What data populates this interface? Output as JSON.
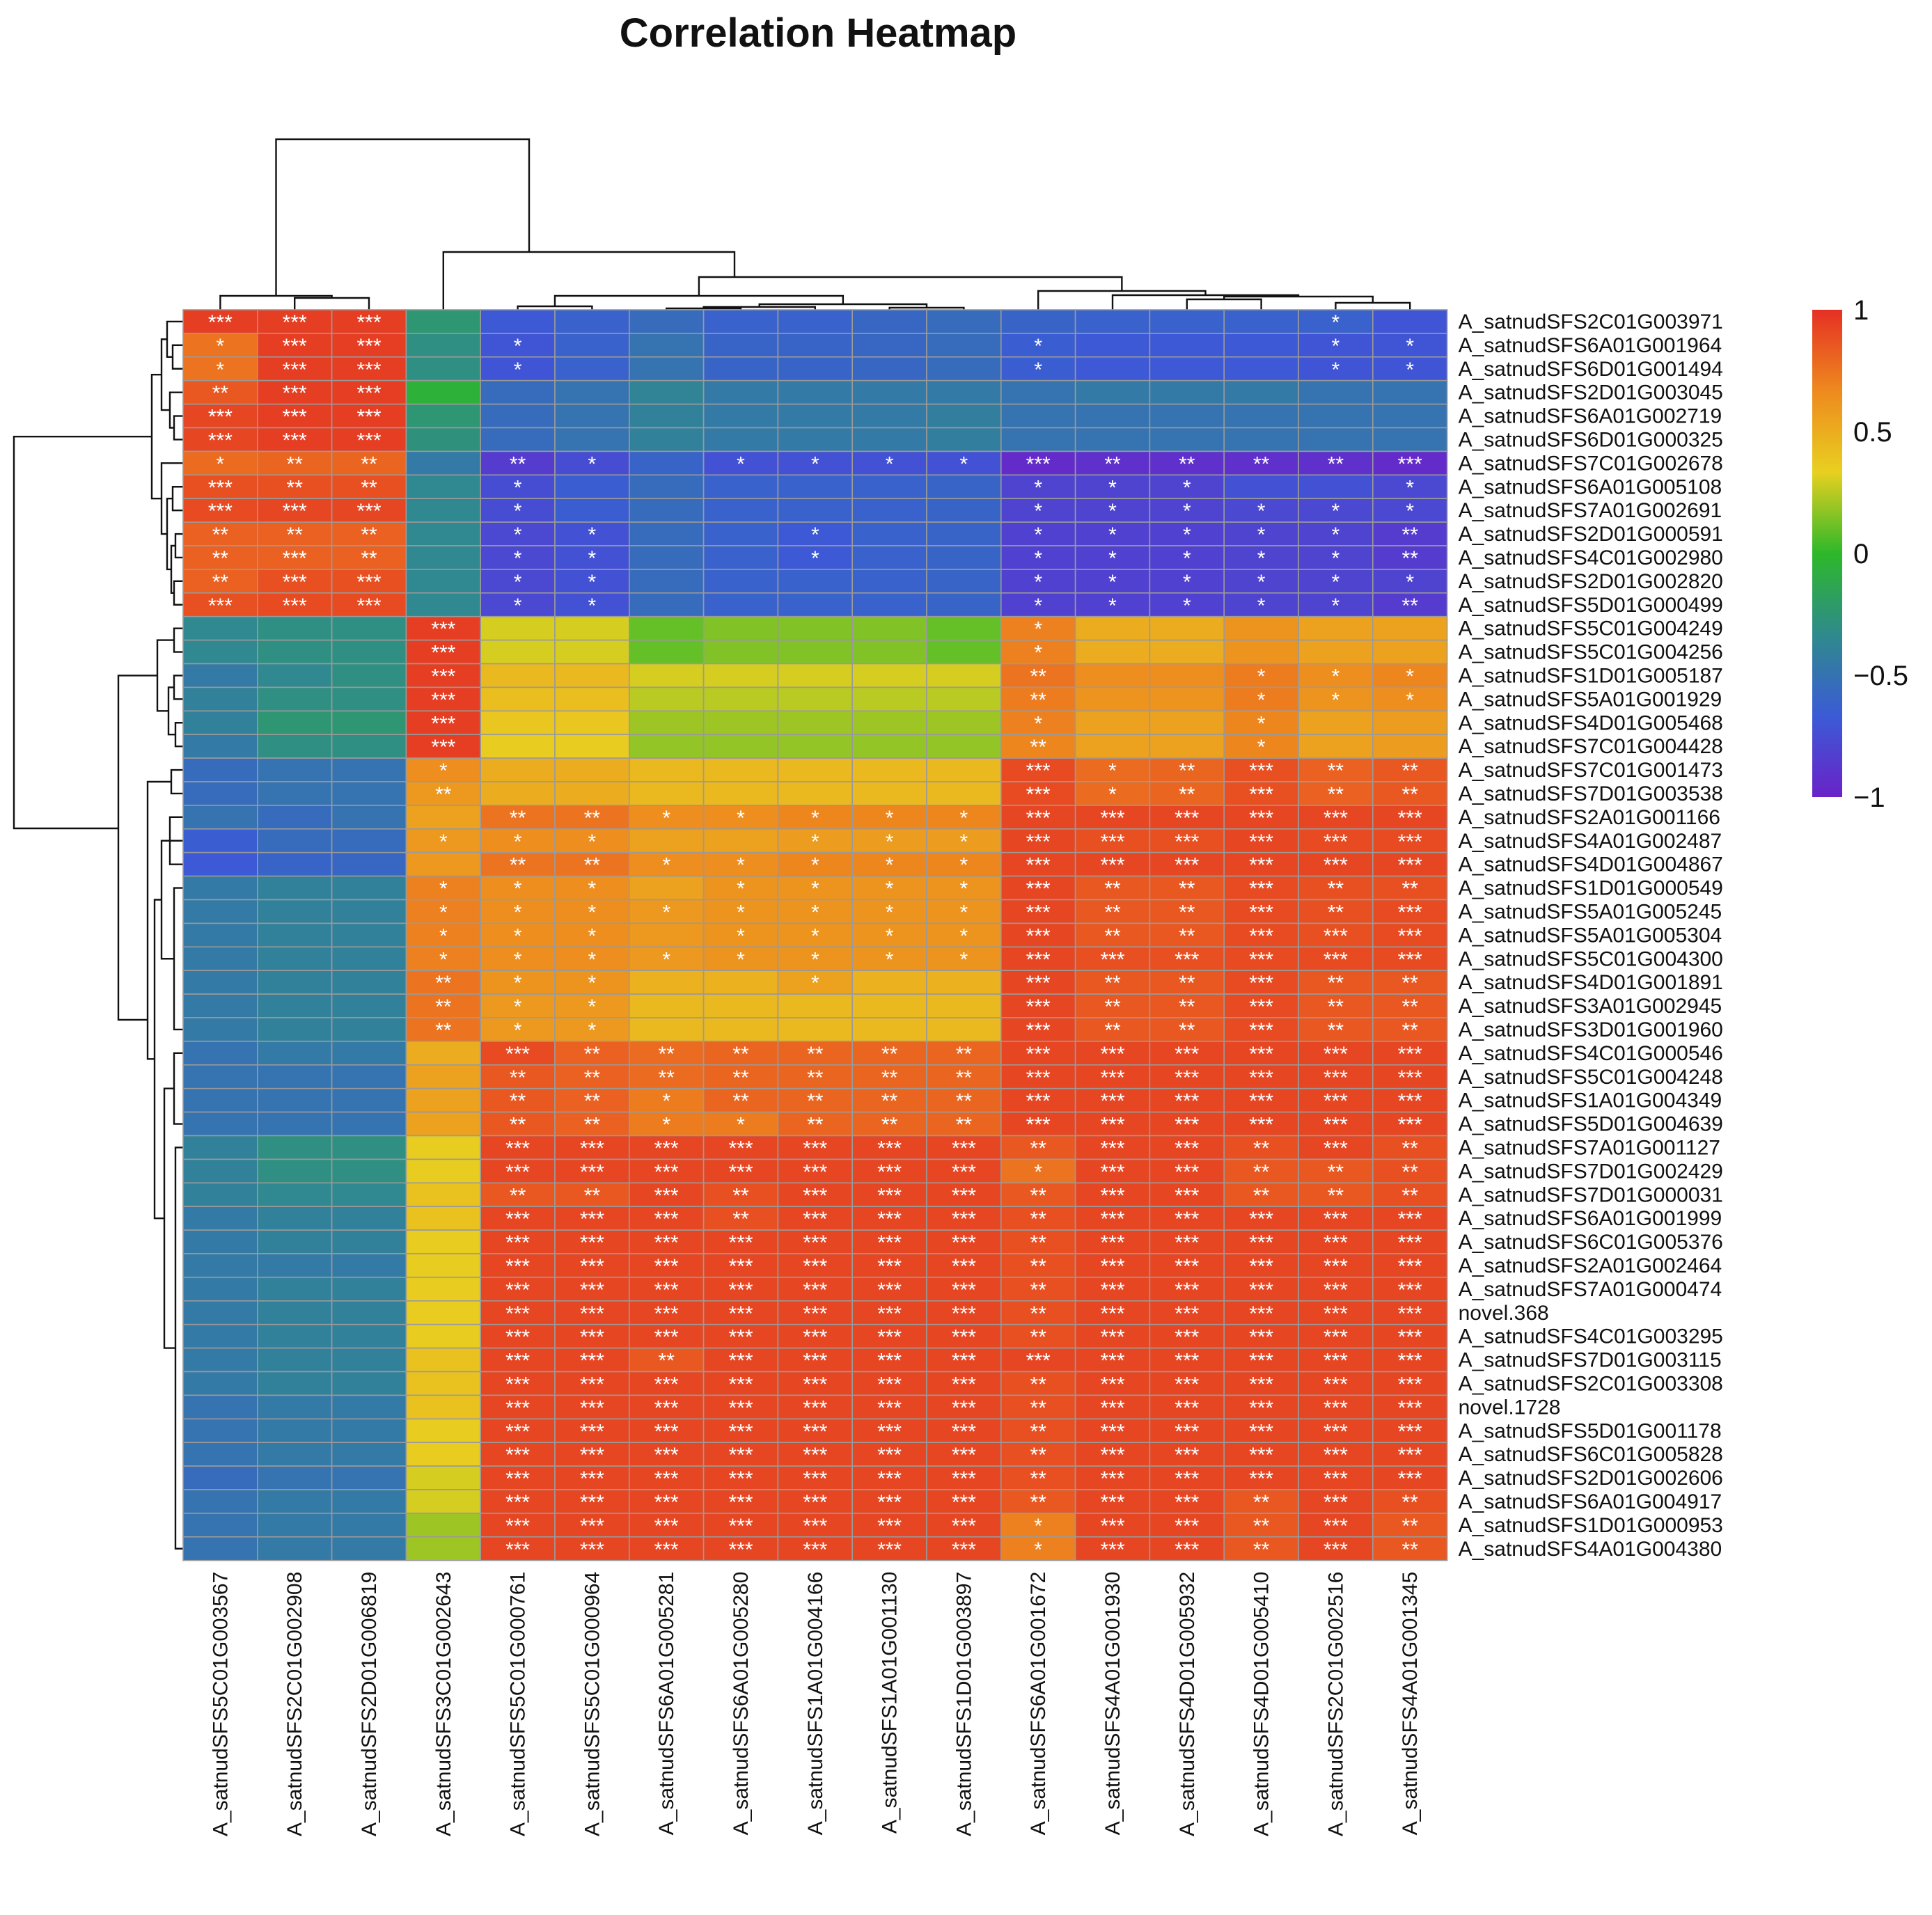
{
  "chart_data": {
    "type": "heatmap",
    "title": "Correlation Heatmap",
    "columns": [
      "A_satnudSFS5C01G003567",
      "A_satnudSFS2C01G002908",
      "A_satnudSFS2D01G006819",
      "A_satnudSFS3C01G002643",
      "A_satnudSFS5C01G000761",
      "A_satnudSFS5C01G000964",
      "A_satnudSFS6A01G005281",
      "A_satnudSFS6A01G005280",
      "A_satnudSFS1A01G004166",
      "A_satnudSFS1A01G001130",
      "A_satnudSFS1D01G003897",
      "A_satnudSFS6A01G001672",
      "A_satnudSFS4A01G001930",
      "A_satnudSFS4D01G005932",
      "A_satnudSFS4D01G005410",
      "A_satnudSFS2C01G002516",
      "A_satnudSFS4A01G001345"
    ],
    "rows": [
      "A_satnudSFS2C01G003971",
      "A_satnudSFS6A01G001964",
      "A_satnudSFS6D01G001494",
      "A_satnudSFS2D01G003045",
      "A_satnudSFS6A01G002719",
      "A_satnudSFS6D01G000325",
      "A_satnudSFS7C01G002678",
      "A_satnudSFS6A01G005108",
      "A_satnudSFS7A01G002691",
      "A_satnudSFS2D01G000591",
      "A_satnudSFS4C01G002980",
      "A_satnudSFS2D01G002820",
      "A_satnudSFS5D01G000499",
      "A_satnudSFS5C01G004249",
      "A_satnudSFS5C01G004256",
      "A_satnudSFS1D01G005187",
      "A_satnudSFS5A01G001929",
      "A_satnudSFS4D01G005468",
      "A_satnudSFS7C01G004428",
      "A_satnudSFS7C01G001473",
      "A_satnudSFS7D01G003538",
      "A_satnudSFS2A01G001166",
      "A_satnudSFS4A01G002487",
      "A_satnudSFS4D01G004867",
      "A_satnudSFS1D01G000549",
      "A_satnudSFS5A01G005245",
      "A_satnudSFS5A01G005304",
      "A_satnudSFS5C01G004300",
      "A_satnudSFS4D01G001891",
      "A_satnudSFS3A01G002945",
      "A_satnudSFS3D01G001960",
      "A_satnudSFS4C01G000546",
      "A_satnudSFS5C01G004248",
      "A_satnudSFS1A01G004349",
      "A_satnudSFS5D01G004639",
      "A_satnudSFS7A01G001127",
      "A_satnudSFS7D01G002429",
      "A_satnudSFS7D01G000031",
      "A_satnudSFS6A01G001999",
      "A_satnudSFS6C01G005376",
      "A_satnudSFS2A01G002464",
      "A_satnudSFS7A01G000474",
      "novel.368",
      "A_satnudSFS4C01G003295",
      "A_satnudSFS7D01G003115",
      "A_satnudSFS2C01G003308",
      "novel.1728",
      "A_satnudSFS5D01G001178",
      "A_satnudSFS6C01G005828",
      "A_satnudSFS2D01G002606",
      "A_satnudSFS6A01G004917",
      "A_satnudSFS1D01G000953",
      "A_satnudSFS4A01G004380"
    ],
    "values": [
      [
        0.95,
        0.95,
        0.95,
        -0.25,
        -0.68,
        -0.62,
        -0.55,
        -0.62,
        -0.62,
        -0.58,
        -0.55,
        -0.6,
        -0.62,
        -0.62,
        -0.62,
        -0.62,
        -0.7
      ],
      [
        0.75,
        0.95,
        0.95,
        -0.3,
        -0.7,
        -0.62,
        -0.5,
        -0.6,
        -0.6,
        -0.58,
        -0.55,
        -0.65,
        -0.68,
        -0.68,
        -0.68,
        -0.7,
        -0.7
      ],
      [
        0.75,
        0.95,
        0.95,
        -0.3,
        -0.7,
        -0.62,
        -0.5,
        -0.6,
        -0.6,
        -0.58,
        -0.55,
        -0.65,
        -0.68,
        -0.68,
        -0.68,
        -0.7,
        -0.7
      ],
      [
        0.85,
        0.95,
        0.95,
        -0.05,
        -0.55,
        -0.5,
        -0.38,
        -0.45,
        -0.45,
        -0.45,
        -0.45,
        -0.5,
        -0.45,
        -0.45,
        -0.45,
        -0.5,
        -0.5
      ],
      [
        0.92,
        0.95,
        0.95,
        -0.25,
        -0.55,
        -0.5,
        -0.4,
        -0.45,
        -0.45,
        -0.45,
        -0.42,
        -0.5,
        -0.5,
        -0.5,
        -0.5,
        -0.5,
        -0.5
      ],
      [
        0.92,
        0.95,
        0.95,
        -0.28,
        -0.55,
        -0.5,
        -0.4,
        -0.45,
        -0.45,
        -0.45,
        -0.42,
        -0.5,
        -0.5,
        -0.5,
        -0.5,
        -0.5,
        -0.5
      ],
      [
        0.78,
        0.8,
        0.8,
        -0.45,
        -0.85,
        -0.75,
        -0.6,
        -0.72,
        -0.72,
        -0.72,
        -0.72,
        -0.95,
        -0.92,
        -0.92,
        -0.92,
        -0.92,
        -0.95
      ],
      [
        0.88,
        0.88,
        0.88,
        -0.35,
        -0.75,
        -0.65,
        -0.55,
        -0.62,
        -0.62,
        -0.62,
        -0.6,
        -0.8,
        -0.8,
        -0.8,
        -0.72,
        -0.72,
        -0.78
      ],
      [
        0.9,
        0.92,
        0.92,
        -0.35,
        -0.75,
        -0.65,
        -0.55,
        -0.62,
        -0.62,
        -0.62,
        -0.6,
        -0.8,
        -0.8,
        -0.8,
        -0.78,
        -0.78,
        -0.78
      ],
      [
        0.82,
        0.82,
        0.82,
        -0.35,
        -0.78,
        -0.72,
        -0.55,
        -0.62,
        -0.68,
        -0.62,
        -0.6,
        -0.82,
        -0.82,
        -0.82,
        -0.8,
        -0.8,
        -0.85
      ],
      [
        0.82,
        0.82,
        0.82,
        -0.35,
        -0.78,
        -0.72,
        -0.55,
        -0.62,
        -0.68,
        -0.62,
        -0.6,
        -0.82,
        -0.82,
        -0.82,
        -0.8,
        -0.8,
        -0.85
      ],
      [
        0.82,
        0.88,
        0.88,
        -0.35,
        -0.78,
        -0.72,
        -0.55,
        -0.62,
        -0.62,
        -0.62,
        -0.6,
        -0.82,
        -0.82,
        -0.82,
        -0.8,
        -0.8,
        -0.8
      ],
      [
        0.88,
        0.9,
        0.9,
        -0.35,
        -0.78,
        -0.72,
        -0.55,
        -0.62,
        -0.62,
        -0.62,
        -0.6,
        -0.82,
        -0.82,
        -0.82,
        -0.8,
        -0.8,
        -0.85
      ],
      [
        -0.35,
        -0.3,
        -0.3,
        0.95,
        0.3,
        0.3,
        0.1,
        0.15,
        0.15,
        0.15,
        0.1,
        0.7,
        0.5,
        0.5,
        0.62,
        0.55,
        0.55
      ],
      [
        -0.35,
        -0.3,
        -0.3,
        0.95,
        0.3,
        0.3,
        0.1,
        0.15,
        0.15,
        0.15,
        0.1,
        0.7,
        0.5,
        0.5,
        0.62,
        0.55,
        0.55
      ],
      [
        -0.45,
        -0.35,
        -0.3,
        0.95,
        0.45,
        0.45,
        0.3,
        0.3,
        0.3,
        0.3,
        0.3,
        0.75,
        0.65,
        0.65,
        0.72,
        0.65,
        0.68
      ],
      [
        -0.4,
        -0.3,
        -0.3,
        0.95,
        0.42,
        0.42,
        0.25,
        0.25,
        0.25,
        0.25,
        0.25,
        0.72,
        0.62,
        0.62,
        0.72,
        0.62,
        0.65
      ],
      [
        -0.4,
        -0.25,
        -0.25,
        0.95,
        0.38,
        0.38,
        0.2,
        0.2,
        0.2,
        0.2,
        0.2,
        0.7,
        0.55,
        0.55,
        0.68,
        0.55,
        0.58
      ],
      [
        -0.45,
        -0.3,
        -0.3,
        0.95,
        0.35,
        0.35,
        0.18,
        0.18,
        0.18,
        0.18,
        0.18,
        0.68,
        0.55,
        0.55,
        0.68,
        0.55,
        0.58
      ],
      [
        -0.55,
        -0.5,
        -0.5,
        0.65,
        0.5,
        0.5,
        0.45,
        0.45,
        0.45,
        0.45,
        0.45,
        0.9,
        0.78,
        0.8,
        0.88,
        0.82,
        0.85
      ],
      [
        -0.55,
        -0.5,
        -0.5,
        0.6,
        0.5,
        0.5,
        0.45,
        0.45,
        0.45,
        0.45,
        0.45,
        0.9,
        0.78,
        0.8,
        0.88,
        0.82,
        0.85
      ],
      [
        -0.5,
        -0.55,
        -0.5,
        0.55,
        0.75,
        0.75,
        0.65,
        0.65,
        0.68,
        0.68,
        0.68,
        0.92,
        0.92,
        0.92,
        0.92,
        0.92,
        0.92
      ],
      [
        -0.65,
        -0.55,
        -0.55,
        0.6,
        0.65,
        0.65,
        0.55,
        0.55,
        0.58,
        0.58,
        0.58,
        0.92,
        0.88,
        0.88,
        0.92,
        0.9,
        0.9
      ],
      [
        -0.68,
        -0.6,
        -0.58,
        0.6,
        0.75,
        0.75,
        0.65,
        0.65,
        0.68,
        0.68,
        0.68,
        0.92,
        0.92,
        0.92,
        0.92,
        0.92,
        0.92
      ],
      [
        -0.45,
        -0.4,
        -0.4,
        0.7,
        0.65,
        0.65,
        0.55,
        0.62,
        0.62,
        0.62,
        0.62,
        0.92,
        0.85,
        0.85,
        0.9,
        0.88,
        0.88
      ],
      [
        -0.45,
        -0.4,
        -0.4,
        0.7,
        0.65,
        0.65,
        0.6,
        0.62,
        0.62,
        0.62,
        0.62,
        0.92,
        0.85,
        0.85,
        0.9,
        0.88,
        0.9
      ],
      [
        -0.45,
        -0.4,
        -0.4,
        0.7,
        0.65,
        0.65,
        0.6,
        0.62,
        0.62,
        0.62,
        0.62,
        0.92,
        0.85,
        0.85,
        0.9,
        0.88,
        0.9
      ],
      [
        -0.45,
        -0.4,
        -0.4,
        0.7,
        0.65,
        0.65,
        0.6,
        0.62,
        0.62,
        0.62,
        0.62,
        0.92,
        0.88,
        0.88,
        0.9,
        0.9,
        0.9
      ],
      [
        -0.45,
        -0.4,
        -0.4,
        0.75,
        0.62,
        0.62,
        0.48,
        0.48,
        0.55,
        0.48,
        0.48,
        0.92,
        0.85,
        0.85,
        0.9,
        0.85,
        0.85
      ],
      [
        -0.45,
        -0.4,
        -0.4,
        0.75,
        0.6,
        0.6,
        0.45,
        0.45,
        0.45,
        0.45,
        0.45,
        0.92,
        0.85,
        0.85,
        0.9,
        0.85,
        0.85
      ],
      [
        -0.45,
        -0.4,
        -0.4,
        0.75,
        0.6,
        0.6,
        0.45,
        0.45,
        0.45,
        0.45,
        0.45,
        0.92,
        0.85,
        0.85,
        0.9,
        0.85,
        0.85
      ],
      [
        -0.5,
        -0.45,
        -0.45,
        0.5,
        0.9,
        0.82,
        0.78,
        0.8,
        0.8,
        0.8,
        0.8,
        0.92,
        0.92,
        0.92,
        0.92,
        0.92,
        0.92
      ],
      [
        -0.5,
        -0.5,
        -0.5,
        0.55,
        0.85,
        0.82,
        0.78,
        0.8,
        0.8,
        0.8,
        0.8,
        0.92,
        0.92,
        0.92,
        0.92,
        0.92,
        0.92
      ],
      [
        -0.5,
        -0.5,
        -0.5,
        0.55,
        0.85,
        0.82,
        0.72,
        0.8,
        0.8,
        0.8,
        0.8,
        0.92,
        0.92,
        0.92,
        0.92,
        0.92,
        0.92
      ],
      [
        -0.5,
        -0.5,
        -0.5,
        0.55,
        0.85,
        0.82,
        0.72,
        0.72,
        0.8,
        0.8,
        0.8,
        0.92,
        0.92,
        0.92,
        0.92,
        0.92,
        0.92
      ],
      [
        -0.4,
        -0.3,
        -0.3,
        0.35,
        0.92,
        0.92,
        0.92,
        0.92,
        0.92,
        0.92,
        0.92,
        0.85,
        0.92,
        0.92,
        0.88,
        0.92,
        0.88
      ],
      [
        -0.4,
        -0.3,
        -0.3,
        0.35,
        0.92,
        0.92,
        0.92,
        0.92,
        0.92,
        0.92,
        0.92,
        0.75,
        0.92,
        0.92,
        0.85,
        0.85,
        0.88
      ],
      [
        -0.4,
        -0.35,
        -0.35,
        0.4,
        0.85,
        0.85,
        0.92,
        0.88,
        0.92,
        0.92,
        0.92,
        0.85,
        0.92,
        0.92,
        0.85,
        0.85,
        0.88
      ],
      [
        -0.45,
        -0.4,
        -0.4,
        0.4,
        0.92,
        0.92,
        0.92,
        0.88,
        0.92,
        0.92,
        0.92,
        0.88,
        0.92,
        0.92,
        0.92,
        0.92,
        0.92
      ],
      [
        -0.45,
        -0.4,
        -0.4,
        0.35,
        0.92,
        0.92,
        0.92,
        0.92,
        0.92,
        0.92,
        0.92,
        0.88,
        0.92,
        0.92,
        0.92,
        0.92,
        0.92
      ],
      [
        -0.45,
        -0.45,
        -0.45,
        0.35,
        0.92,
        0.92,
        0.92,
        0.92,
        0.92,
        0.92,
        0.92,
        0.88,
        0.92,
        0.92,
        0.92,
        0.92,
        0.92
      ],
      [
        -0.45,
        -0.4,
        -0.4,
        0.35,
        0.92,
        0.92,
        0.92,
        0.92,
        0.92,
        0.92,
        0.92,
        0.88,
        0.92,
        0.92,
        0.92,
        0.92,
        0.92
      ],
      [
        -0.45,
        -0.4,
        -0.4,
        0.35,
        0.92,
        0.92,
        0.92,
        0.92,
        0.92,
        0.92,
        0.92,
        0.88,
        0.92,
        0.92,
        0.92,
        0.92,
        0.92
      ],
      [
        -0.45,
        -0.4,
        -0.4,
        0.35,
        0.92,
        0.92,
        0.92,
        0.92,
        0.92,
        0.92,
        0.92,
        0.88,
        0.92,
        0.92,
        0.92,
        0.92,
        0.92
      ],
      [
        -0.45,
        -0.4,
        -0.4,
        0.4,
        0.92,
        0.92,
        0.85,
        0.92,
        0.92,
        0.92,
        0.92,
        0.92,
        0.92,
        0.92,
        0.92,
        0.92,
        0.92
      ],
      [
        -0.45,
        -0.4,
        -0.4,
        0.4,
        0.92,
        0.92,
        0.92,
        0.92,
        0.92,
        0.92,
        0.92,
        0.88,
        0.92,
        0.92,
        0.92,
        0.92,
        0.92
      ],
      [
        -0.5,
        -0.45,
        -0.45,
        0.4,
        0.92,
        0.92,
        0.92,
        0.92,
        0.92,
        0.92,
        0.92,
        0.88,
        0.92,
        0.92,
        0.92,
        0.92,
        0.92
      ],
      [
        -0.5,
        -0.45,
        -0.45,
        0.35,
        0.92,
        0.92,
        0.92,
        0.92,
        0.92,
        0.92,
        0.92,
        0.88,
        0.92,
        0.92,
        0.92,
        0.92,
        0.92
      ],
      [
        -0.5,
        -0.45,
        -0.45,
        0.35,
        0.92,
        0.92,
        0.92,
        0.92,
        0.92,
        0.92,
        0.92,
        0.88,
        0.92,
        0.92,
        0.92,
        0.92,
        0.92
      ],
      [
        -0.55,
        -0.5,
        -0.5,
        0.3,
        0.92,
        0.92,
        0.92,
        0.92,
        0.92,
        0.92,
        0.92,
        0.88,
        0.92,
        0.92,
        0.92,
        0.92,
        0.92
      ],
      [
        -0.5,
        -0.45,
        -0.45,
        0.3,
        0.92,
        0.92,
        0.92,
        0.92,
        0.92,
        0.92,
        0.92,
        0.85,
        0.92,
        0.92,
        0.85,
        0.92,
        0.88
      ],
      [
        -0.5,
        -0.45,
        -0.45,
        0.2,
        0.92,
        0.92,
        0.92,
        0.92,
        0.92,
        0.92,
        0.92,
        0.7,
        0.92,
        0.92,
        0.85,
        0.92,
        0.85
      ],
      [
        -0.5,
        -0.45,
        -0.45,
        0.2,
        0.92,
        0.92,
        0.92,
        0.92,
        0.92,
        0.92,
        0.92,
        0.7,
        0.92,
        0.92,
        0.85,
        0.92,
        0.85
      ]
    ],
    "significance": [
      "*** *** ***  . . . . . . . . . . . . *",
      "* *** ***  . * . . . . . . * . . . * *",
      "* *** ***  . * . . . . . . * . . . * *",
      "** *** ***  . . . . . . . . . . . . .",
      "*** *** ***  . . . . . . . . . . . . .",
      "*** *** ***  . . . . . . . . . . . . .",
      "* ** **  . ** * . * * * * *** ** ** ** ** ***",
      "*** ** **  . * . . . . . . * * * . . *",
      "*** *** ***  . * . . . . . . * * * * * *",
      "** ** **  . * * . . * . . * * * * * **",
      "** *** **  . * * . . * . . * * * * * **",
      "** *** ***  . * * . . . . . * * * * * *",
      "*** *** ***  . * * . . . . . * * * * * **",
      ". . . *** . . . . . . . * . . . . .",
      ". . . *** . . . . . . . * . . . . .",
      ". . . *** . . . . . . . ** . . * * *",
      ". . . *** . . . . . . . ** . . * * *",
      ". . . *** . . . . . . . * . . * . .",
      ". . . *** . . . . . . . ** . . * . .",
      ". . . * . . . . . . . *** * ** *** ** **",
      ". . . ** . . . . . . . *** * ** *** ** **",
      ". . . . ** ** * * * * * *** *** *** *** *** ***",
      ". . . * * * . . * * * *** *** *** *** *** ***",
      ". . . . ** ** * * * * * *** *** *** *** *** ***",
      ". . . * * * . * * * * *** ** ** *** ** **",
      ". . . * * * * * * * * *** ** ** *** ** ***",
      ". . . * * * . * * * * *** ** ** *** *** ***",
      ". . . * * * * * * * * *** *** *** *** *** ***",
      ". . . ** * * . . * . . *** ** ** *** ** **",
      ". . . ** * * . . . . . *** ** ** *** ** **",
      ". . . ** * * . . . . . *** ** ** *** ** **",
      ". . . . *** ** ** ** ** ** ** *** *** *** *** *** ***",
      ". . . . ** ** ** ** ** ** ** *** *** *** *** *** ***",
      ". . . . ** ** * ** ** ** ** *** *** *** *** *** ***",
      ". . . . ** ** * * ** ** ** *** *** *** *** *** ***",
      ". . . . *** *** *** *** *** *** *** ** *** *** ** *** **",
      ". . . . *** *** *** *** *** *** *** * *** *** ** ** **",
      ". . . . ** ** *** ** *** *** *** ** *** *** ** ** **",
      ". . . . *** *** *** ** *** *** *** ** *** *** *** *** ***",
      ". . . . *** *** *** *** *** *** *** ** *** *** *** *** ***",
      ". . . . *** *** *** *** *** *** *** ** *** *** *** *** ***",
      ". . . . *** *** *** *** *** *** *** ** *** *** *** *** ***",
      ". . . . *** *** *** *** *** *** *** ** *** *** *** *** ***",
      ". . . . *** *** *** *** *** *** *** ** *** *** *** *** ***",
      ". . . . *** *** ** *** *** *** *** *** *** *** *** *** ***",
      ". . . . *** *** *** *** *** *** *** ** *** *** *** *** ***",
      ". . . . *** *** *** *** *** *** *** ** *** *** *** *** ***",
      ". . . . *** *** *** *** *** *** *** ** *** *** *** *** ***",
      ". . . . *** *** *** *** *** *** *** ** *** *** *** *** ***",
      ". . . . *** *** *** *** *** *** *** ** *** *** *** *** ***",
      ". . . . *** *** *** *** *** *** *** ** *** *** ** *** **",
      ". . . . *** *** *** *** *** *** *** * *** *** ** *** **",
      ". . . . *** *** *** *** *** *** *** * *** *** ** *** **"
    ],
    "legend": {
      "ticks": [
        "1",
        "0.5",
        "0",
        "−0.5",
        "−1"
      ],
      "range": [
        -1,
        1
      ]
    },
    "colormap": [
      "#6A22C8",
      "#3B5BD6",
      "#2F8A8C",
      "#2DB82A",
      "#E8D020",
      "#EE8A1E",
      "#E53024"
    ],
    "dendrograms": {
      "row": true,
      "column": true
    }
  }
}
